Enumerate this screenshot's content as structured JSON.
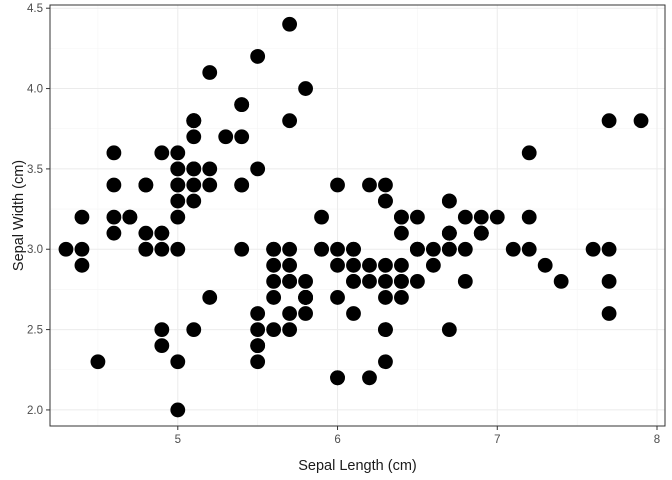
{
  "chart_data": {
    "type": "scatter",
    "title": "",
    "xlabel": "Sepal Length (cm)",
    "ylabel": "Sepal Width (cm)",
    "xlim": [
      4.2,
      8.05
    ],
    "ylim": [
      1.9,
      4.52
    ],
    "x_ticks": [
      5,
      6,
      7,
      8
    ],
    "x_tick_labels": [
      "5",
      "6",
      "7",
      "8"
    ],
    "y_ticks": [
      2.0,
      2.5,
      3.0,
      3.5,
      4.0,
      4.5
    ],
    "y_tick_labels": [
      "2.0",
      "2.5",
      "3.0",
      "3.5",
      "4.0",
      "4.5"
    ],
    "grid": true,
    "legend": "none",
    "point_color": "#000000",
    "series": [
      {
        "x": [
          5.1,
          4.9,
          4.7,
          4.6,
          5.0,
          5.4,
          4.6,
          5.0,
          4.4,
          4.9,
          5.4,
          4.8,
          4.8,
          4.3,
          5.8,
          5.7,
          5.4,
          5.1,
          5.7,
          5.1,
          5.4,
          5.1,
          4.6,
          5.1,
          4.8,
          5.0,
          5.0,
          5.2,
          5.2,
          4.7,
          4.8,
          5.4,
          5.2,
          5.5,
          4.9,
          5.0,
          5.5,
          4.9,
          4.4,
          5.1,
          5.0,
          4.5,
          4.4,
          5.0,
          5.1,
          4.8,
          5.1,
          4.6,
          5.3,
          5.0,
          7.0,
          6.4,
          6.9,
          5.5,
          6.5,
          5.7,
          6.3,
          4.9,
          6.6,
          5.2,
          5.0,
          5.9,
          6.0,
          6.1,
          5.6,
          6.7,
          5.6,
          5.8,
          6.2,
          5.6,
          5.9,
          6.1,
          6.3,
          6.1,
          6.4,
          6.6,
          6.8,
          6.7,
          6.0,
          5.7,
          5.5,
          5.5,
          5.8,
          6.0,
          5.4,
          6.0,
          6.7,
          6.3,
          5.6,
          5.5,
          5.5,
          6.1,
          5.8,
          5.0,
          5.6,
          5.7,
          5.7,
          6.2,
          5.1,
          5.7,
          6.3,
          5.8,
          7.1,
          6.3,
          6.5,
          7.6,
          4.9,
          7.3,
          6.7,
          7.2,
          6.5,
          6.4,
          6.8,
          5.7,
          5.8,
          6.4,
          6.5,
          7.7,
          7.7,
          6.0,
          6.9,
          5.6,
          7.7,
          6.3,
          6.7,
          7.2,
          6.2,
          6.1,
          6.4,
          7.2,
          7.4,
          7.9,
          6.4,
          6.3,
          6.1,
          7.7,
          6.3,
          6.4,
          6.0,
          6.9,
          6.7,
          6.9,
          5.8,
          6.8,
          6.7,
          6.7,
          6.3,
          6.5,
          6.2,
          5.9
        ],
        "y": [
          3.5,
          3.0,
          3.2,
          3.1,
          3.6,
          3.9,
          3.4,
          3.4,
          2.9,
          3.1,
          3.7,
          3.4,
          3.0,
          3.0,
          4.0,
          4.4,
          3.9,
          3.5,
          3.8,
          3.8,
          3.4,
          3.7,
          3.6,
          3.3,
          3.4,
          3.0,
          3.4,
          3.5,
          3.4,
          3.2,
          3.1,
          3.4,
          4.1,
          4.2,
          3.1,
          3.2,
          3.5,
          3.6,
          3.0,
          3.4,
          3.5,
          2.3,
          3.2,
          3.5,
          3.8,
          3.0,
          3.8,
          3.2,
          3.7,
          3.3,
          3.2,
          3.2,
          3.1,
          2.3,
          2.8,
          2.8,
          3.3,
          2.4,
          2.9,
          2.7,
          2.0,
          3.0,
          2.2,
          2.9,
          2.9,
          3.1,
          3.0,
          2.7,
          2.2,
          2.5,
          3.2,
          2.8,
          2.5,
          2.8,
          2.9,
          3.0,
          2.8,
          3.0,
          2.9,
          2.6,
          2.4,
          2.4,
          2.7,
          2.7,
          3.0,
          3.4,
          3.1,
          2.3,
          3.0,
          2.5,
          2.6,
          3.0,
          2.6,
          2.3,
          2.7,
          3.0,
          2.9,
          2.9,
          2.5,
          2.8,
          3.3,
          2.7,
          3.0,
          2.9,
          3.0,
          3.0,
          2.5,
          2.9,
          2.5,
          3.6,
          3.2,
          2.7,
          3.0,
          2.5,
          2.8,
          3.2,
          3.0,
          3.8,
          2.6,
          2.2,
          3.2,
          2.8,
          2.8,
          2.7,
          3.3,
          3.2,
          2.8,
          3.0,
          2.8,
          3.0,
          2.8,
          3.8,
          2.8,
          2.8,
          2.6,
          3.0,
          3.4,
          3.1,
          3.0,
          3.1,
          3.1,
          3.1,
          2.7,
          3.2,
          3.3,
          3.0,
          2.5,
          3.0,
          3.4,
          3.0
        ]
      }
    ]
  }
}
